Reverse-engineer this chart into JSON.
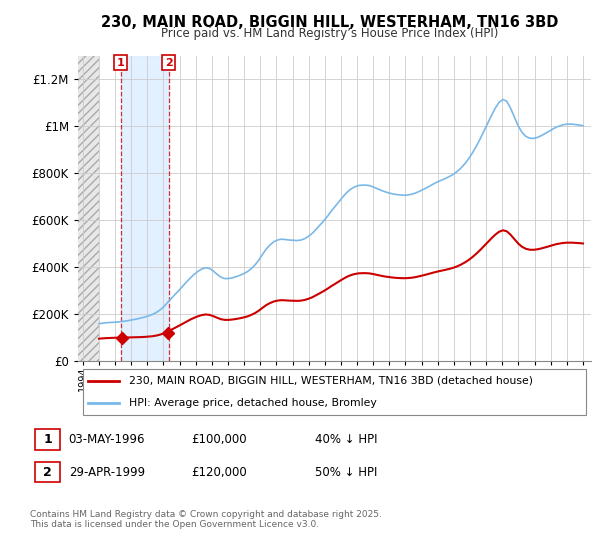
{
  "title": "230, MAIN ROAD, BIGGIN HILL, WESTERHAM, TN16 3BD",
  "subtitle": "Price paid vs. HM Land Registry’s House Price Index (HPI)",
  "hpi_color": "#7ab8e8",
  "price_color": "#cc0000",
  "transaction1": {
    "date": 1996.35,
    "price": 100000,
    "label": "1",
    "note": "03-MAY-1996",
    "amount": "£100,000",
    "hpi_note": "40% ↓ HPI"
  },
  "transaction2": {
    "date": 1999.33,
    "price": 120000,
    "label": "2",
    "note": "29-APR-1999",
    "amount": "£120,000",
    "hpi_note": "50% ↓ HPI"
  },
  "footer": "Contains HM Land Registry data © Crown copyright and database right 2025.\nThis data is licensed under the Open Government Licence v3.0.",
  "legend_line1": "230, MAIN ROAD, BIGGIN HILL, WESTERHAM, TN16 3BD (detached house)",
  "legend_line2": "HPI: Average price, detached house, Bromley",
  "bg_color": "#ffffff",
  "xlim": [
    1993.7,
    2025.5
  ],
  "ylim": [
    0,
    1300000
  ],
  "grid_color": "#cccccc",
  "shade_color": "#ddeeff",
  "hatch_end": 1995.0,
  "hpi_start_year": 1995,
  "hpi_end_year": 2025,
  "hpi_values": [
    160000,
    162000,
    164000,
    165000,
    166000,
    167000,
    169000,
    171000,
    174000,
    177000,
    180000,
    184000,
    188000,
    193000,
    199000,
    207000,
    218000,
    232000,
    250000,
    268000,
    285000,
    302000,
    320000,
    338000,
    355000,
    370000,
    383000,
    393000,
    398000,
    395000,
    384000,
    370000,
    358000,
    352000,
    352000,
    355000,
    360000,
    366000,
    373000,
    382000,
    395000,
    411000,
    432000,
    457000,
    480000,
    497000,
    510000,
    517000,
    520000,
    518000,
    516000,
    515000,
    514000,
    516000,
    522000,
    532000,
    545000,
    562000,
    580000,
    598000,
    618000,
    640000,
    660000,
    680000,
    700000,
    718000,
    732000,
    742000,
    748000,
    750000,
    750000,
    748000,
    742000,
    735000,
    728000,
    722000,
    717000,
    713000,
    710000,
    708000,
    707000,
    708000,
    711000,
    716000,
    723000,
    731000,
    739000,
    748000,
    757000,
    765000,
    772000,
    779000,
    787000,
    796000,
    808000,
    823000,
    841000,
    862000,
    887000,
    915000,
    946000,
    979000,
    1013000,
    1047000,
    1078000,
    1103000,
    1115000,
    1107000,
    1078000,
    1040000,
    1003000,
    975000,
    958000,
    950000,
    949000,
    953000,
    960000,
    969000,
    978000,
    988000,
    997000,
    1003000,
    1008000,
    1010000,
    1010000,
    1008000,
    1006000,
    1003000
  ],
  "price_scale_1": 0.6,
  "price_scale_2": 0.5,
  "price_transition": 1999.33
}
